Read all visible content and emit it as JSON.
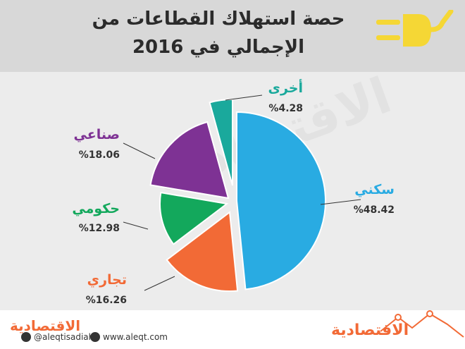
{
  "header": {
    "title_line1": "حصة استهلاك القطاعات من",
    "title_line2": "الإجمالي في 2016"
  },
  "chart_data": {
    "type": "pie",
    "title": "حصة استهلاك القطاعات من الإجمالي في 2016",
    "slices": [
      {
        "label": "سكني",
        "value": 48.42,
        "value_label": "%48.42",
        "color": "#29abe2"
      },
      {
        "label": "تجاري",
        "value": 16.26,
        "value_label": "%16.26",
        "color": "#f26a36"
      },
      {
        "label": "حكومي",
        "value": 12.98,
        "value_label": "%12.98",
        "color": "#13a85c"
      },
      {
        "label": "صناعي",
        "value": 18.06,
        "value_label": "%18.06",
        "color": "#7e3294"
      },
      {
        "label": "أخرى",
        "value": 4.28,
        "value_label": "%4.28",
        "color": "#1aa99c"
      }
    ]
  },
  "watermark": "الاقتصادية",
  "footer": {
    "twitter": "@aleqtisadiah",
    "website": "www.aleqt.com",
    "brand_left": "الاقتصادية",
    "brand_right": "الاقتصادية"
  },
  "colors": {
    "header_bg": "#d8d8d8",
    "main_bg": "#ececec",
    "plug": "#f5d735",
    "footer_line": "#f26a36"
  }
}
